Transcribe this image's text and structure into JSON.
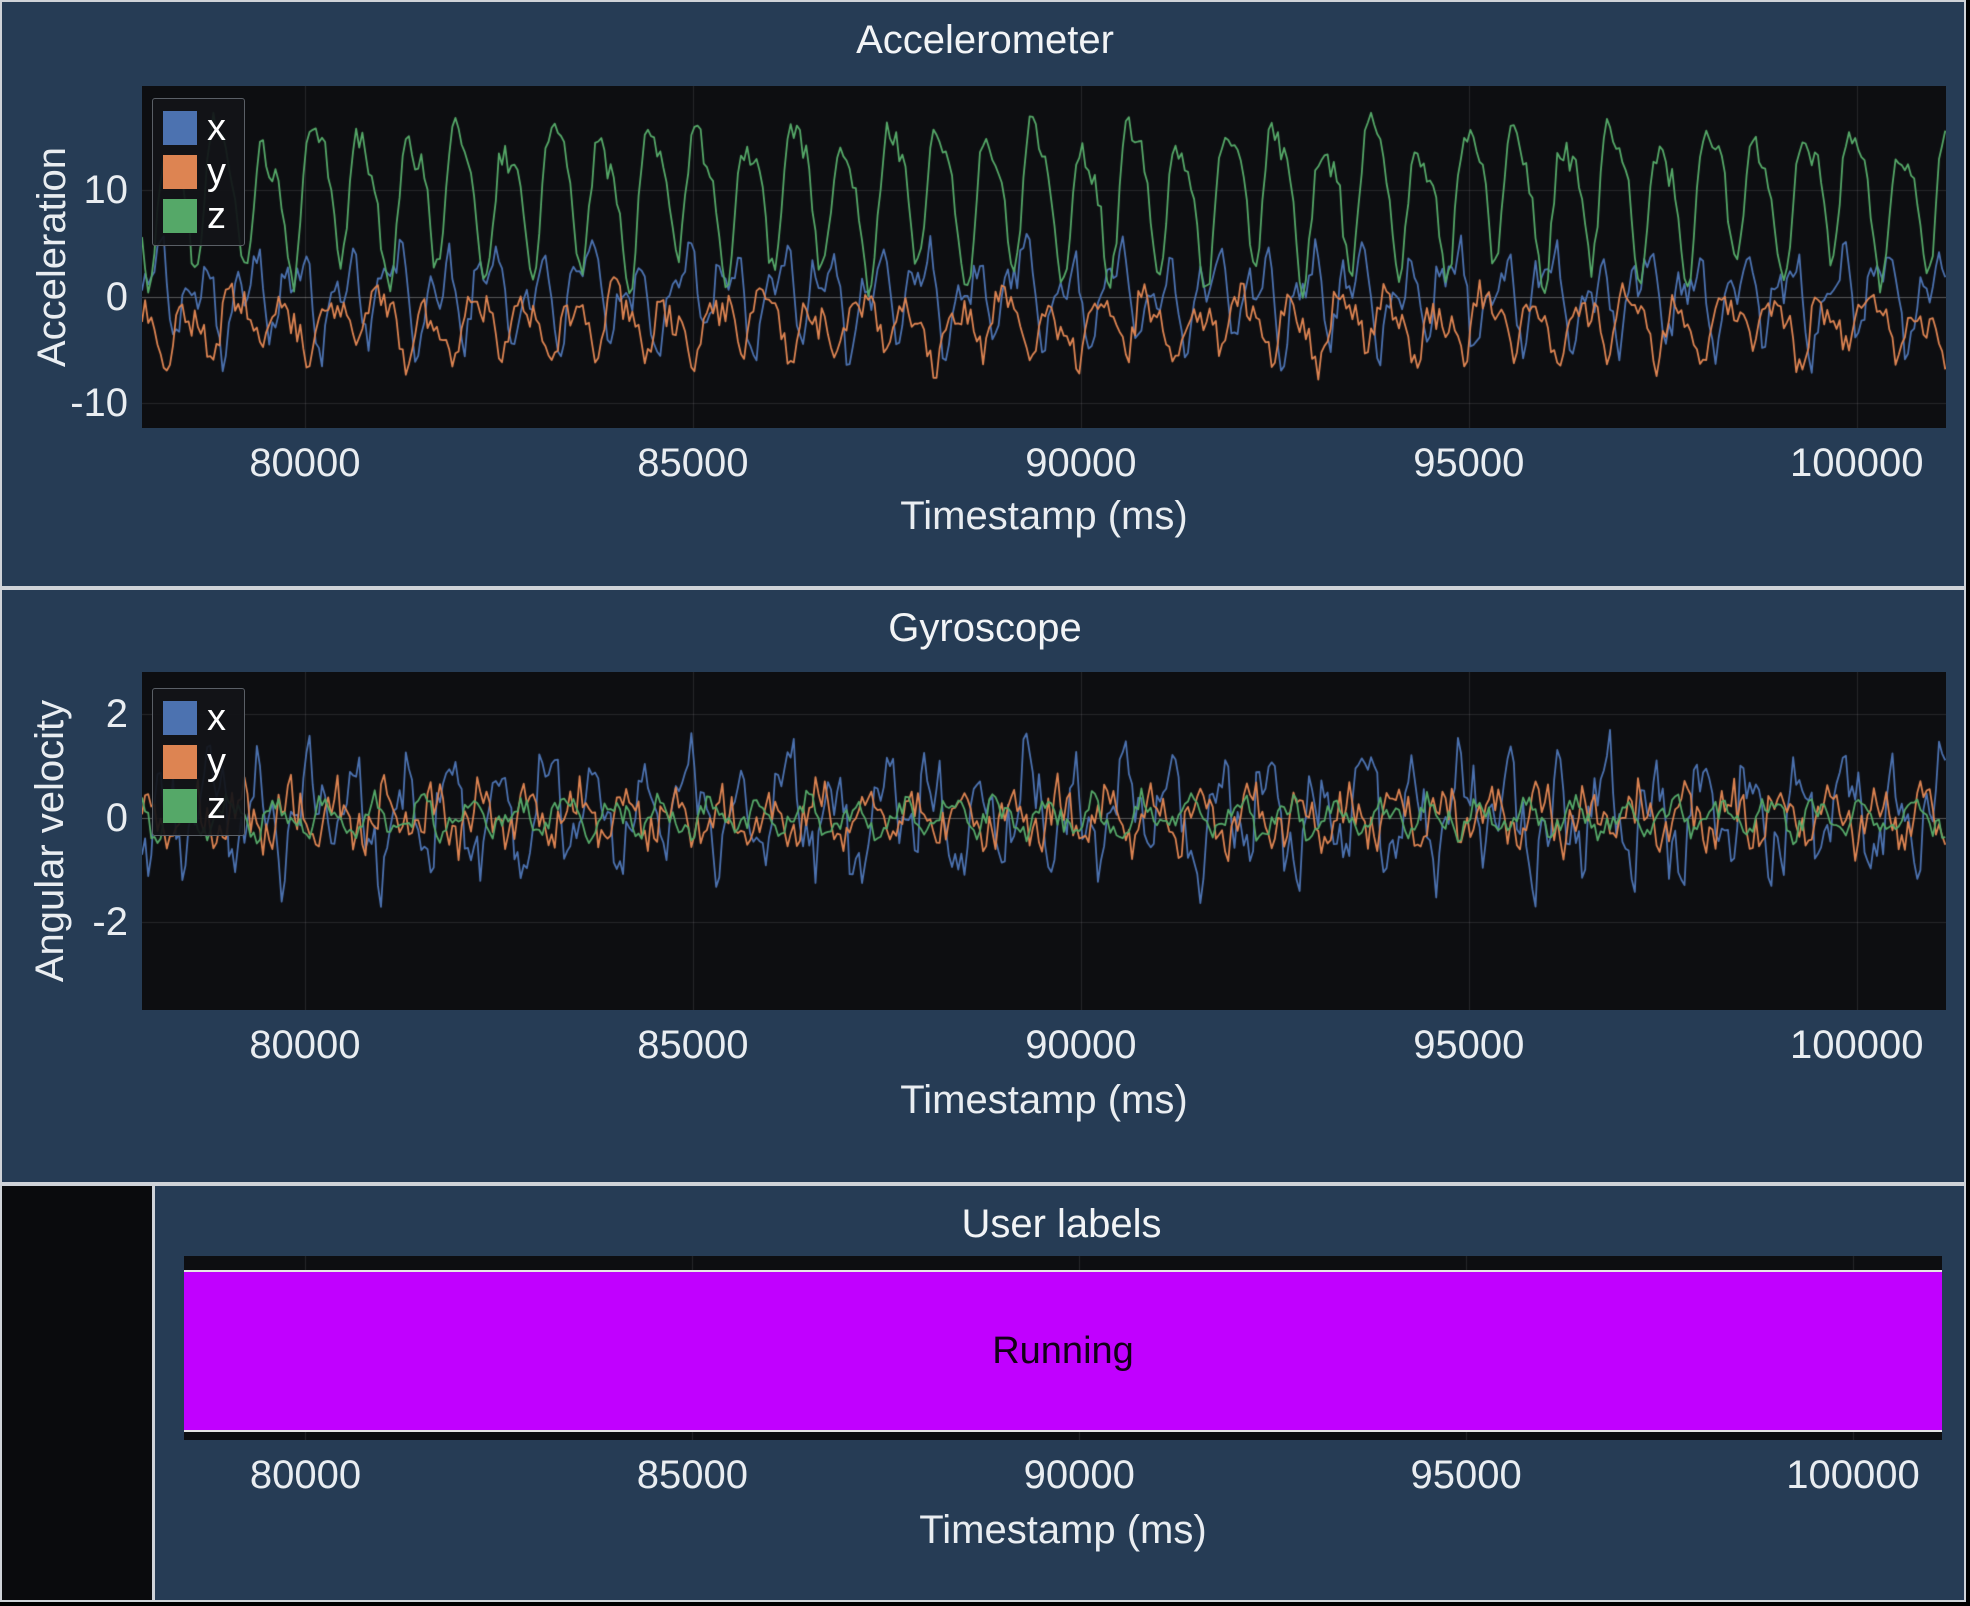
{
  "app": {
    "background": "#263c55",
    "plot_background": "#0d0e11",
    "text_color": "#eef1f4",
    "border_color": "#cfd3d8"
  },
  "chart_data": [
    {
      "type": "line",
      "title": "Accelerometer",
      "xlabel": "Timestamp (ms)",
      "ylabel": "Acceleration",
      "x_range": [
        77900,
        101150
      ],
      "y_range": [
        -12.3,
        19.8
      ],
      "x_ticks": [
        80000,
        85000,
        90000,
        95000,
        100000
      ],
      "x_tick_labels": [
        "80000",
        "85000",
        "90000",
        "95000",
        "100000"
      ],
      "y_ticks": [
        10,
        0,
        -10
      ],
      "y_tick_labels": [
        "10",
        "0",
        "-10"
      ],
      "grid": true,
      "legend_position": "upper-left",
      "legend": [
        "x",
        "y",
        "z"
      ],
      "sample_interval_ms": 40,
      "series": [
        {
          "name": "x",
          "color": "#4c72b0",
          "mean": 0.2,
          "components": [
            [
              3.0,
              620,
              2.2
            ],
            [
              2.2,
              310,
              0.6
            ],
            [
              1.0,
              1370,
              1.0
            ]
          ],
          "noise": 1.5,
          "seed": 101
        },
        {
          "name": "y",
          "color": "#dd8452",
          "mean": -2.6,
          "components": [
            [
              2.2,
              620,
              4.2
            ],
            [
              1.1,
              310,
              2.9
            ],
            [
              0.9,
              1610,
              0.3
            ]
          ],
          "noise": 1.4,
          "seed": 202
        },
        {
          "name": "z",
          "color": "#55a868",
          "mean": 9.6,
          "components": [
            [
              6.0,
              620,
              0.0
            ],
            [
              1.8,
              310,
              1.0
            ],
            [
              1.4,
              1490,
              2.0
            ]
          ],
          "noise": 1.2,
          "seed": 303
        }
      ]
    },
    {
      "type": "line",
      "title": "Gyroscope",
      "xlabel": "Timestamp (ms)",
      "ylabel": "Angular velocity",
      "x_range": [
        77900,
        101150
      ],
      "y_range": [
        -3.7,
        2.8
      ],
      "x_ticks": [
        80000,
        85000,
        90000,
        95000,
        100000
      ],
      "x_tick_labels": [
        "80000",
        "85000",
        "90000",
        "95000",
        "100000"
      ],
      "y_ticks": [
        2,
        0,
        -2
      ],
      "y_tick_labels": [
        "2",
        "0",
        "-2"
      ],
      "grid": true,
      "legend_position": "upper-left",
      "legend": [
        "x",
        "y",
        "z"
      ],
      "sample_interval_ms": 40,
      "series": [
        {
          "name": "x",
          "color": "#4c72b0",
          "mean": 0.05,
          "components": [
            [
              0.8,
              620,
              1.1
            ],
            [
              0.35,
              215,
              0.0
            ],
            [
              0.3,
              1490,
              2.2
            ]
          ],
          "noise": 0.45,
          "seed": 404
        },
        {
          "name": "y",
          "color": "#dd8452",
          "mean": 0.0,
          "components": [
            [
              0.4,
              620,
              3.4
            ],
            [
              0.2,
              150,
              1.2
            ]
          ],
          "noise": 0.3,
          "seed": 505
        },
        {
          "name": "z",
          "color": "#55a868",
          "mean": 0.0,
          "components": [
            [
              0.28,
              620,
              5.0
            ],
            [
              0.1,
              330,
              0.7
            ]
          ],
          "noise": 0.2,
          "seed": 606
        }
      ]
    },
    {
      "type": "timeline",
      "title": "User labels",
      "xlabel": "Timestamp (ms)",
      "x_range": [
        78430,
        101150
      ],
      "x_ticks": [
        80000,
        85000,
        90000,
        95000,
        100000
      ],
      "x_tick_labels": [
        "80000",
        "85000",
        "90000",
        "95000",
        "100000"
      ],
      "grid": true,
      "segments": [
        {
          "label": "Running",
          "start": 78430,
          "end": 101150,
          "color": "#c100ff",
          "text_color": "#120016"
        }
      ]
    }
  ]
}
